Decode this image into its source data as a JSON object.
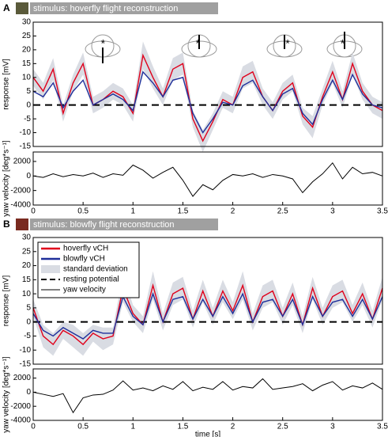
{
  "chart_data": [
    {
      "type": "line",
      "panel": "A",
      "title": "stimulus: hoverfly flight reconstruction",
      "ylabel": "response [mV]",
      "x": [
        0,
        0.1,
        0.2,
        0.3,
        0.4,
        0.5,
        0.6,
        0.7,
        0.8,
        0.9,
        1,
        1.1,
        1.2,
        1.3,
        1.4,
        1.5,
        1.6,
        1.7,
        1.8,
        1.9,
        2,
        2.1,
        2.2,
        2.3,
        2.4,
        2.5,
        2.6,
        2.7,
        2.8,
        2.9,
        3,
        3.1,
        3.2,
        3.3,
        3.4,
        3.5
      ],
      "xlim": [
        0,
        3.5
      ],
      "ylim": [
        -15,
        30
      ],
      "yticks": [
        30,
        25,
        20,
        15,
        10,
        5,
        0,
        -5,
        -10,
        -15
      ],
      "series": [
        {
          "name": "hoverfly vCH",
          "color": "#e0001b",
          "values": [
            10,
            5,
            13,
            -3,
            8,
            15,
            0,
            2,
            5,
            3,
            -3,
            18,
            10,
            3,
            13,
            15,
            -5,
            -13,
            -6,
            2,
            0,
            10,
            12,
            3,
            -2,
            5,
            8,
            -4,
            -8,
            3,
            12,
            2,
            15,
            5,
            0,
            -2
          ]
        },
        {
          "name": "blowfly vCH",
          "color": "#1f2f9a",
          "values": [
            5,
            3,
            8,
            -1,
            5,
            9,
            0,
            2,
            4,
            2,
            -2,
            12,
            8,
            3,
            9,
            10,
            -3,
            -10,
            -5,
            1,
            0,
            7,
            9,
            3,
            -2,
            4,
            6,
            -3,
            -7,
            2,
            9,
            2,
            11,
            4,
            0,
            -1
          ]
        },
        {
          "name": "standard deviation",
          "color": "#d9dce3",
          "band": true,
          "values": [
            3,
            3,
            4,
            3,
            3,
            4,
            3,
            3,
            3,
            3,
            3,
            5,
            4,
            3,
            4,
            4,
            3,
            4,
            3,
            3,
            3,
            4,
            4,
            3,
            3,
            3,
            3,
            3,
            4,
            3,
            4,
            3,
            4,
            3,
            3,
            3
          ]
        }
      ],
      "reference": {
        "value": 0
      },
      "annotations": [
        {
          "text": "*",
          "x": 0.7,
          "y": 22
        },
        {
          "text": "*",
          "x": 1.65,
          "y": 22
        },
        {
          "text": "*",
          "x": 2.55,
          "y": 22
        },
        {
          "text": "*",
          "x": 3.1,
          "y": 22
        }
      ]
    },
    {
      "type": "line",
      "ylabel": "yaw velocity [deg*s⁻¹]",
      "x": [
        0,
        0.1,
        0.2,
        0.3,
        0.4,
        0.5,
        0.6,
        0.7,
        0.8,
        0.9,
        1,
        1.1,
        1.2,
        1.3,
        1.4,
        1.5,
        1.6,
        1.7,
        1.8,
        1.9,
        2,
        2.1,
        2.2,
        2.3,
        2.4,
        2.5,
        2.6,
        2.7,
        2.8,
        2.9,
        3,
        3.1,
        3.2,
        3.3,
        3.4,
        3.5
      ],
      "xlim": [
        0,
        3.5
      ],
      "xticks": [
        0,
        0.5,
        1,
        1.5,
        2,
        2.5,
        3,
        3.5
      ],
      "ylim": [
        -4000,
        3300
      ],
      "yticks": [
        2000,
        0,
        -2000,
        -4000
      ],
      "series": [
        {
          "name": "yaw velocity",
          "color": "#000000",
          "values": [
            0,
            -200,
            300,
            -100,
            200,
            0,
            400,
            -200,
            300,
            100,
            1500,
            800,
            -300,
            500,
            1200,
            -600,
            -2800,
            -1200,
            -1900,
            -600,
            200,
            0,
            300,
            -200,
            200,
            0,
            -400,
            -2300,
            -800,
            300,
            1800,
            -400,
            1200,
            300,
            500,
            0
          ]
        }
      ]
    },
    {
      "type": "line",
      "panel": "B",
      "title": "stimulus: blowfly flight reconstruction",
      "ylabel": "response [mV]",
      "x": [
        0,
        0.1,
        0.2,
        0.3,
        0.4,
        0.5,
        0.6,
        0.7,
        0.8,
        0.9,
        1,
        1.1,
        1.2,
        1.3,
        1.4,
        1.5,
        1.6,
        1.7,
        1.8,
        1.9,
        2,
        2.1,
        2.2,
        2.3,
        2.4,
        2.5,
        2.6,
        2.7,
        2.8,
        2.9,
        3,
        3.1,
        3.2,
        3.3,
        3.4,
        3.5
      ],
      "xlim": [
        0,
        3.5
      ],
      "ylim": [
        -15,
        30
      ],
      "yticks": [
        30,
        25,
        20,
        15,
        10,
        5,
        0,
        -5,
        -10,
        -15
      ],
      "series": [
        {
          "name": "hoverfly vCH",
          "color": "#e0001b",
          "values": [
            5,
            -5,
            -8,
            -3,
            -5,
            -8,
            -4,
            -6,
            -5,
            12,
            3,
            -1,
            13,
            0,
            10,
            12,
            1,
            11,
            2,
            11,
            4,
            13,
            0,
            9,
            11,
            2,
            10,
            -1,
            12,
            2,
            9,
            11,
            3,
            10,
            1,
            12
          ]
        },
        {
          "name": "blowfly vCH",
          "color": "#1f2f9a",
          "values": [
            3,
            -3,
            -5,
            -2,
            -4,
            -6,
            -3,
            -4,
            -4,
            9,
            2,
            -1,
            10,
            0,
            8,
            9,
            1,
            8,
            2,
            9,
            3,
            10,
            0,
            7,
            8,
            2,
            8,
            -1,
            9,
            2,
            7,
            8,
            2,
            8,
            1,
            9
          ]
        },
        {
          "name": "standard deviation",
          "color": "#d9dce3",
          "band": true,
          "values": [
            3,
            4,
            4,
            3,
            4,
            4,
            3,
            4,
            3,
            5,
            3,
            3,
            5,
            3,
            4,
            4,
            3,
            4,
            3,
            4,
            3,
            5,
            3,
            4,
            4,
            3,
            4,
            3,
            4,
            3,
            4,
            4,
            3,
            4,
            3,
            4
          ]
        }
      ],
      "reference": {
        "name": "resting potential",
        "value": 0
      },
      "legend": "upper left"
    },
    {
      "type": "line",
      "ylabel": "yaw velocity [deg*s⁻¹]",
      "xlabel": "time [s]",
      "x": [
        0,
        0.1,
        0.2,
        0.3,
        0.4,
        0.5,
        0.6,
        0.7,
        0.8,
        0.9,
        1,
        1.1,
        1.2,
        1.3,
        1.4,
        1.5,
        1.6,
        1.7,
        1.8,
        1.9,
        2,
        2.1,
        2.2,
        2.3,
        2.4,
        2.5,
        2.6,
        2.7,
        2.8,
        2.9,
        3,
        3.1,
        3.2,
        3.3,
        3.4,
        3.5
      ],
      "xlim": [
        0,
        3.5
      ],
      "xticks": [
        0,
        0.5,
        1,
        1.5,
        2,
        2.5,
        3,
        3.5
      ],
      "ylim": [
        -4000,
        3300
      ],
      "yticks": [
        2000,
        0,
        -2000,
        -4000
      ],
      "series": [
        {
          "name": "yaw velocity",
          "color": "#000000",
          "values": [
            0,
            -300,
            -600,
            -200,
            -2900,
            -800,
            -400,
            -300,
            300,
            1600,
            300,
            600,
            200,
            900,
            400,
            1500,
            200,
            700,
            400,
            1500,
            300,
            800,
            600,
            1900,
            400,
            600,
            800,
            1200,
            200,
            1000,
            1500,
            300,
            900,
            600,
            1300,
            400
          ]
        }
      ]
    }
  ]
}
